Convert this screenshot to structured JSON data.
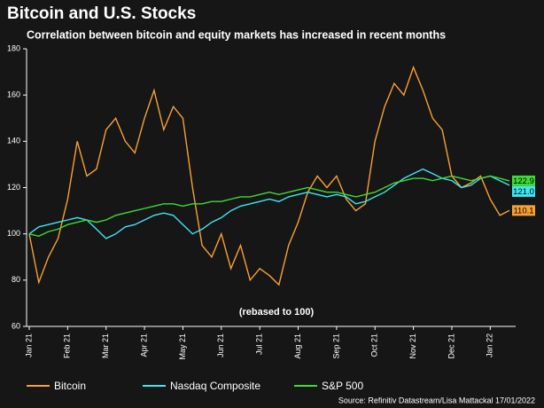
{
  "chart_data": {
    "type": "line",
    "title": "Bitcoin and U.S. Stocks",
    "subtitle": "Correlation between bitcoin and equity markets has increased in recent months",
    "annotation": "(rebased to 100)",
    "source": "Source: Refinitiv Datastream/Lisa Mattackal 17/01/2022",
    "categories": [
      "Jan 21",
      null,
      null,
      null,
      "Feb 21",
      null,
      null,
      null,
      "Mar 21",
      null,
      null,
      null,
      "Apr 21",
      null,
      null,
      null,
      "May 21",
      null,
      null,
      null,
      "Jun 21",
      null,
      null,
      null,
      "Jul 21",
      null,
      null,
      null,
      "Aug 21",
      null,
      null,
      null,
      "Sep 21",
      null,
      null,
      null,
      "Oct 21",
      null,
      null,
      null,
      "Nov 21",
      null,
      null,
      null,
      "Dec 21",
      null,
      null,
      null,
      "Jan 22",
      null,
      null
    ],
    "ylim": [
      60,
      180
    ],
    "yticks": [
      60,
      80,
      100,
      120,
      140,
      160,
      180
    ],
    "grid": false,
    "legend": "bottom-left",
    "series": [
      {
        "name": "Bitcoin",
        "color": "#f7a135",
        "values": [
          100,
          79,
          90,
          98,
          115,
          140,
          125,
          128,
          145,
          150,
          140,
          135,
          150,
          162,
          145,
          155,
          150,
          120,
          95,
          90,
          100,
          85,
          95,
          80,
          85,
          82,
          78,
          95,
          105,
          118,
          125,
          120,
          125,
          115,
          110,
          113,
          140,
          155,
          165,
          160,
          172,
          162,
          150,
          145,
          125,
          120,
          122,
          125,
          115,
          108,
          110.1
        ],
        "value_labels": [
          null,
          null,
          null,
          null,
          null,
          null,
          null,
          null,
          null,
          null,
          null,
          null,
          null,
          null,
          null,
          null,
          null,
          null,
          null,
          null,
          null,
          null,
          null,
          null,
          null,
          null,
          null,
          null,
          null,
          null,
          null,
          null,
          null,
          null,
          null,
          null,
          null,
          null,
          null,
          null,
          null,
          null,
          null,
          null,
          null,
          null,
          null,
          null,
          null,
          null,
          "110.1"
        ]
      },
      {
        "name": "Nasdaq Composite",
        "color": "#3ee6f2",
        "values": [
          100,
          103,
          104,
          105,
          106,
          107,
          106,
          102,
          98,
          100,
          103,
          104,
          106,
          108,
          109,
          108,
          104,
          100,
          102,
          105,
          107,
          110,
          112,
          113,
          114,
          115,
          114,
          116,
          117,
          118,
          117,
          116,
          117,
          116,
          113,
          114,
          116,
          118,
          121,
          124,
          126,
          128,
          126,
          124,
          123,
          120,
          121,
          124,
          125,
          123,
          121
        ],
        "value_labels": [
          null,
          null,
          null,
          null,
          null,
          null,
          null,
          null,
          null,
          null,
          null,
          null,
          null,
          null,
          null,
          null,
          null,
          null,
          null,
          null,
          null,
          null,
          null,
          null,
          null,
          null,
          null,
          null,
          null,
          null,
          null,
          null,
          null,
          null,
          null,
          null,
          null,
          null,
          null,
          null,
          null,
          null,
          null,
          null,
          null,
          null,
          null,
          null,
          null,
          null,
          "121.0"
        ]
      },
      {
        "name": "S&P 500",
        "color": "#3ddc35",
        "values": [
          100,
          99,
          101,
          102,
          104,
          105,
          106,
          105,
          106,
          108,
          109,
          110,
          111,
          112,
          113,
          113,
          112,
          113,
          113,
          114,
          114,
          115,
          116,
          116,
          117,
          118,
          117,
          118,
          119,
          120,
          119,
          118,
          118,
          117,
          116,
          117,
          118,
          120,
          122,
          123,
          124,
          124,
          123,
          124,
          125,
          124,
          123,
          124,
          125,
          124,
          122.9
        ],
        "value_labels": [
          null,
          null,
          null,
          null,
          null,
          null,
          null,
          null,
          null,
          null,
          null,
          null,
          null,
          null,
          null,
          null,
          null,
          null,
          null,
          null,
          null,
          null,
          null,
          null,
          null,
          null,
          null,
          null,
          null,
          null,
          null,
          null,
          null,
          null,
          null,
          null,
          null,
          null,
          null,
          null,
          null,
          null,
          null,
          null,
          null,
          null,
          null,
          null,
          null,
          null,
          "122.9"
        ]
      }
    ]
  }
}
